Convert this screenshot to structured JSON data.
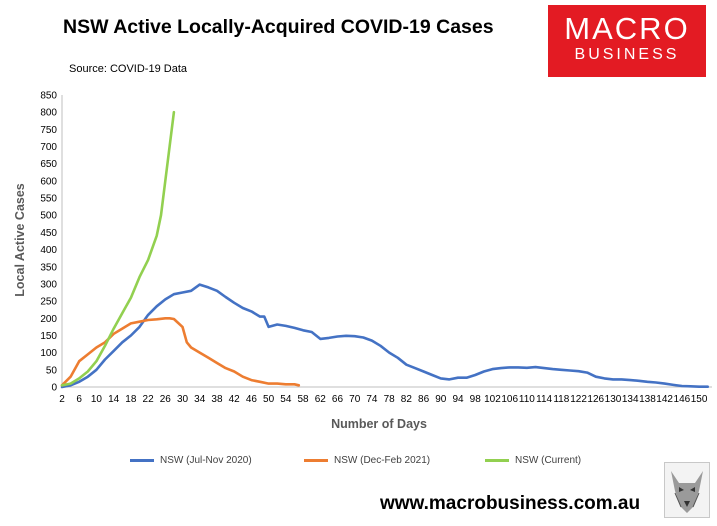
{
  "header": {
    "title": "NSW Active Locally-Acquired COVID-19 Cases",
    "source": "Source: COVID-19 Data"
  },
  "logo": {
    "line1": "MACRO",
    "line2": "BUSINESS"
  },
  "footer": {
    "website": "www.macrobusiness.com.au"
  },
  "colors": {
    "jul_nov_2020": "#4472c4",
    "dec_feb_2021": "#ed7d31",
    "current": "#92d050",
    "axis": "#bfbfbf",
    "tick_text": "#000000"
  },
  "chart_data": {
    "type": "line",
    "xlabel": "Number of Days",
    "ylabel": "Local Active Cases",
    "xlim": [
      2,
      153
    ],
    "ylim": [
      0,
      850
    ],
    "ytick_step": 50,
    "xtick_labels": [
      "2",
      "6",
      "10",
      "14",
      "18",
      "22",
      "26",
      "30",
      "34",
      "38",
      "42",
      "46",
      "50",
      "54",
      "58",
      "62",
      "66",
      "70",
      "74",
      "78",
      "82",
      "86",
      "90",
      "94",
      "98",
      "102",
      "106",
      "110",
      "114",
      "118",
      "122",
      "126",
      "130",
      "134",
      "138",
      "142",
      "146",
      "150"
    ],
    "legend_position": "bottom",
    "grid": false,
    "series": [
      {
        "name": "NSW (Jul-Nov 2020)",
        "color": "#4472c4",
        "x": [
          2,
          4,
          6,
          8,
          10,
          12,
          14,
          16,
          18,
          20,
          22,
          24,
          26,
          28,
          30,
          32,
          34,
          36,
          38,
          40,
          42,
          44,
          46,
          48,
          49,
          50,
          52,
          54,
          56,
          58,
          60,
          62,
          64,
          66,
          68,
          70,
          72,
          74,
          76,
          78,
          80,
          82,
          84,
          86,
          88,
          90,
          92,
          94,
          96,
          98,
          100,
          102,
          104,
          106,
          108,
          110,
          112,
          114,
          116,
          118,
          120,
          122,
          124,
          126,
          128,
          130,
          132,
          134,
          136,
          138,
          140,
          142,
          144,
          146,
          148,
          150,
          152
        ],
        "y": [
          0,
          5,
          15,
          30,
          50,
          80,
          105,
          130,
          150,
          175,
          210,
          235,
          255,
          270,
          275,
          280,
          298,
          290,
          280,
          262,
          245,
          230,
          220,
          205,
          205,
          175,
          182,
          178,
          172,
          165,
          160,
          140,
          143,
          147,
          149,
          148,
          144,
          135,
          120,
          100,
          85,
          65,
          55,
          45,
          35,
          25,
          22,
          27,
          27,
          35,
          45,
          52,
          55,
          57,
          57,
          56,
          58,
          55,
          52,
          50,
          48,
          46,
          42,
          30,
          25,
          22,
          22,
          20,
          18,
          15,
          13,
          10,
          6,
          3,
          2,
          1,
          1
        ]
      },
      {
        "name": "NSW (Dec-Feb 2021)",
        "color": "#ed7d31",
        "x": [
          2,
          4,
          6,
          8,
          10,
          12,
          14,
          16,
          18,
          20,
          22,
          24,
          26,
          27,
          28,
          30,
          31,
          32,
          34,
          36,
          38,
          40,
          42,
          44,
          46,
          48,
          50,
          52,
          54,
          56,
          57
        ],
        "y": [
          5,
          30,
          75,
          95,
          115,
          130,
          155,
          170,
          185,
          190,
          195,
          197,
          200,
          200,
          198,
          175,
          130,
          115,
          100,
          85,
          70,
          55,
          45,
          30,
          20,
          15,
          10,
          10,
          8,
          8,
          5
        ]
      },
      {
        "name": "NSW (Current)",
        "color": "#92d050",
        "x": [
          2,
          4,
          6,
          8,
          10,
          12,
          14,
          16,
          18,
          20,
          22,
          24,
          25,
          26,
          27,
          28
        ],
        "y": [
          5,
          10,
          25,
          45,
          75,
          120,
          170,
          215,
          260,
          320,
          370,
          440,
          500,
          600,
          700,
          800
        ]
      }
    ]
  }
}
